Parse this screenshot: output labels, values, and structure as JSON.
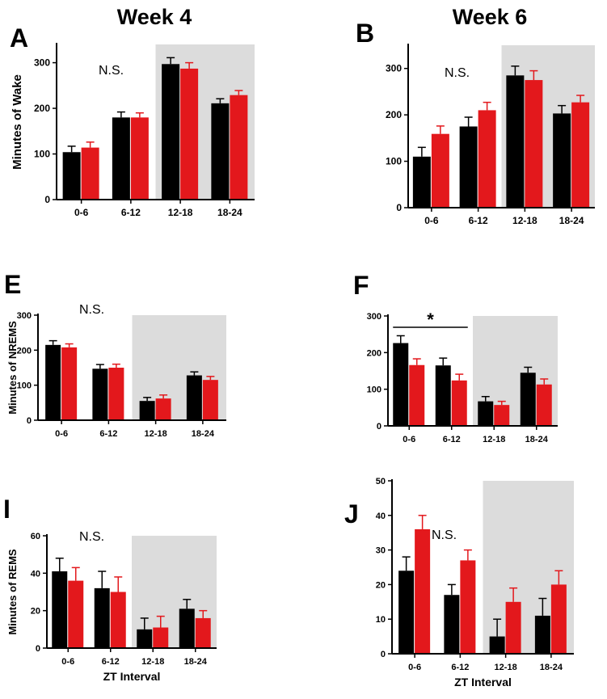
{
  "columns": [
    "Week 4",
    "Week 6"
  ],
  "colors": {
    "control": "#000000",
    "treatment": "#e3181c",
    "dark_phase": "#dcdcdc"
  },
  "chart_data": [
    {
      "panel": "A",
      "type": "bar",
      "column": "Week 4",
      "ylabel": "Minutes of Wake",
      "xlabel": "",
      "categories": [
        "0-6",
        "6-12",
        "12-18",
        "18-24"
      ],
      "ylim": [
        0,
        340
      ],
      "yticks": [
        0,
        100,
        200,
        300
      ],
      "shaded_categories": [
        "12-18",
        "18-24"
      ],
      "annotation": "N.S.",
      "series": [
        {
          "name": "black",
          "color": "#000000",
          "values": [
            104,
            180,
            297,
            211
          ],
          "errors": [
            13,
            12,
            14,
            10
          ]
        },
        {
          "name": "red",
          "color": "#e3181c",
          "values": [
            114,
            180,
            287,
            229
          ],
          "errors": [
            12,
            10,
            13,
            10
          ]
        }
      ]
    },
    {
      "panel": "B",
      "type": "bar",
      "column": "Week 6",
      "ylabel": "",
      "xlabel": "",
      "categories": [
        "0-6",
        "6-12",
        "12-18",
        "18-24"
      ],
      "ylim": [
        0,
        350
      ],
      "yticks": [
        0,
        100,
        200,
        300
      ],
      "shaded_categories": [
        "12-18",
        "18-24"
      ],
      "annotation": "N.S.",
      "series": [
        {
          "name": "black",
          "color": "#000000",
          "values": [
            110,
            175,
            285,
            203
          ],
          "errors": [
            20,
            20,
            20,
            17
          ]
        },
        {
          "name": "red",
          "color": "#e3181c",
          "values": [
            159,
            210,
            275,
            227
          ],
          "errors": [
            17,
            17,
            20,
            15
          ]
        }
      ]
    },
    {
      "panel": "E",
      "type": "bar",
      "column": "Week 4",
      "ylabel": "Minutes of NREMS",
      "xlabel": "",
      "categories": [
        "0-6",
        "6-12",
        "12-18",
        "18-24"
      ],
      "ylim": [
        0,
        300
      ],
      "yticks": [
        0,
        100,
        200,
        300
      ],
      "shaded_categories": [
        "12-18",
        "18-24"
      ],
      "annotation": "N.S.",
      "series": [
        {
          "name": "black",
          "color": "#000000",
          "values": [
            215,
            147,
            55,
            128
          ],
          "errors": [
            12,
            12,
            10,
            10
          ]
        },
        {
          "name": "red",
          "color": "#e3181c",
          "values": [
            208,
            150,
            62,
            115
          ],
          "errors": [
            10,
            10,
            10,
            10
          ]
        }
      ]
    },
    {
      "panel": "F",
      "type": "bar",
      "column": "Week 6",
      "ylabel": "",
      "xlabel": "",
      "categories": [
        "0-6",
        "6-12",
        "12-18",
        "18-24"
      ],
      "ylim": [
        0,
        300
      ],
      "yticks": [
        0,
        100,
        200,
        300
      ],
      "shaded_categories": [
        "12-18",
        "18-24"
      ],
      "annotation": "*",
      "significance_between": [
        "0-6",
        "6-12"
      ],
      "series": [
        {
          "name": "black",
          "color": "#000000",
          "values": [
            226,
            165,
            67,
            145
          ],
          "errors": [
            20,
            20,
            13,
            15
          ]
        },
        {
          "name": "red",
          "color": "#e3181c",
          "values": [
            166,
            124,
            57,
            113
          ],
          "errors": [
            17,
            17,
            10,
            15
          ]
        }
      ]
    },
    {
      "panel": "I",
      "type": "bar",
      "column": "Week 4",
      "ylabel": "Minutes of REMS",
      "xlabel": "ZT Interval",
      "categories": [
        "0-6",
        "6-12",
        "12-18",
        "18-24"
      ],
      "ylim": [
        0,
        60
      ],
      "yticks": [
        0,
        20,
        40,
        60
      ],
      "shaded_categories": [
        "12-18",
        "18-24"
      ],
      "annotation": "N.S.",
      "series": [
        {
          "name": "black",
          "color": "#000000",
          "values": [
            41,
            32,
            10,
            21
          ],
          "errors": [
            7,
            9,
            6,
            5
          ]
        },
        {
          "name": "red",
          "color": "#e3181c",
          "values": [
            36,
            30,
            11,
            16
          ],
          "errors": [
            7,
            8,
            6,
            4
          ]
        }
      ]
    },
    {
      "panel": "J",
      "type": "bar",
      "column": "Week 6",
      "ylabel": "",
      "xlabel": "ZT Interval",
      "categories": [
        "0-6",
        "6-12",
        "12-18",
        "18-24"
      ],
      "ylim": [
        0,
        50
      ],
      "yticks": [
        0,
        10,
        20,
        30,
        40,
        50
      ],
      "shaded_categories": [
        "12-18",
        "18-24"
      ],
      "annotation": "N.S.",
      "series": [
        {
          "name": "black",
          "color": "#000000",
          "values": [
            24,
            17,
            5,
            11
          ],
          "errors": [
            4,
            3,
            5,
            5
          ]
        },
        {
          "name": "red",
          "color": "#e3181c",
          "values": [
            36,
            27,
            15,
            20
          ],
          "errors": [
            4,
            3,
            4,
            4
          ]
        }
      ]
    }
  ]
}
